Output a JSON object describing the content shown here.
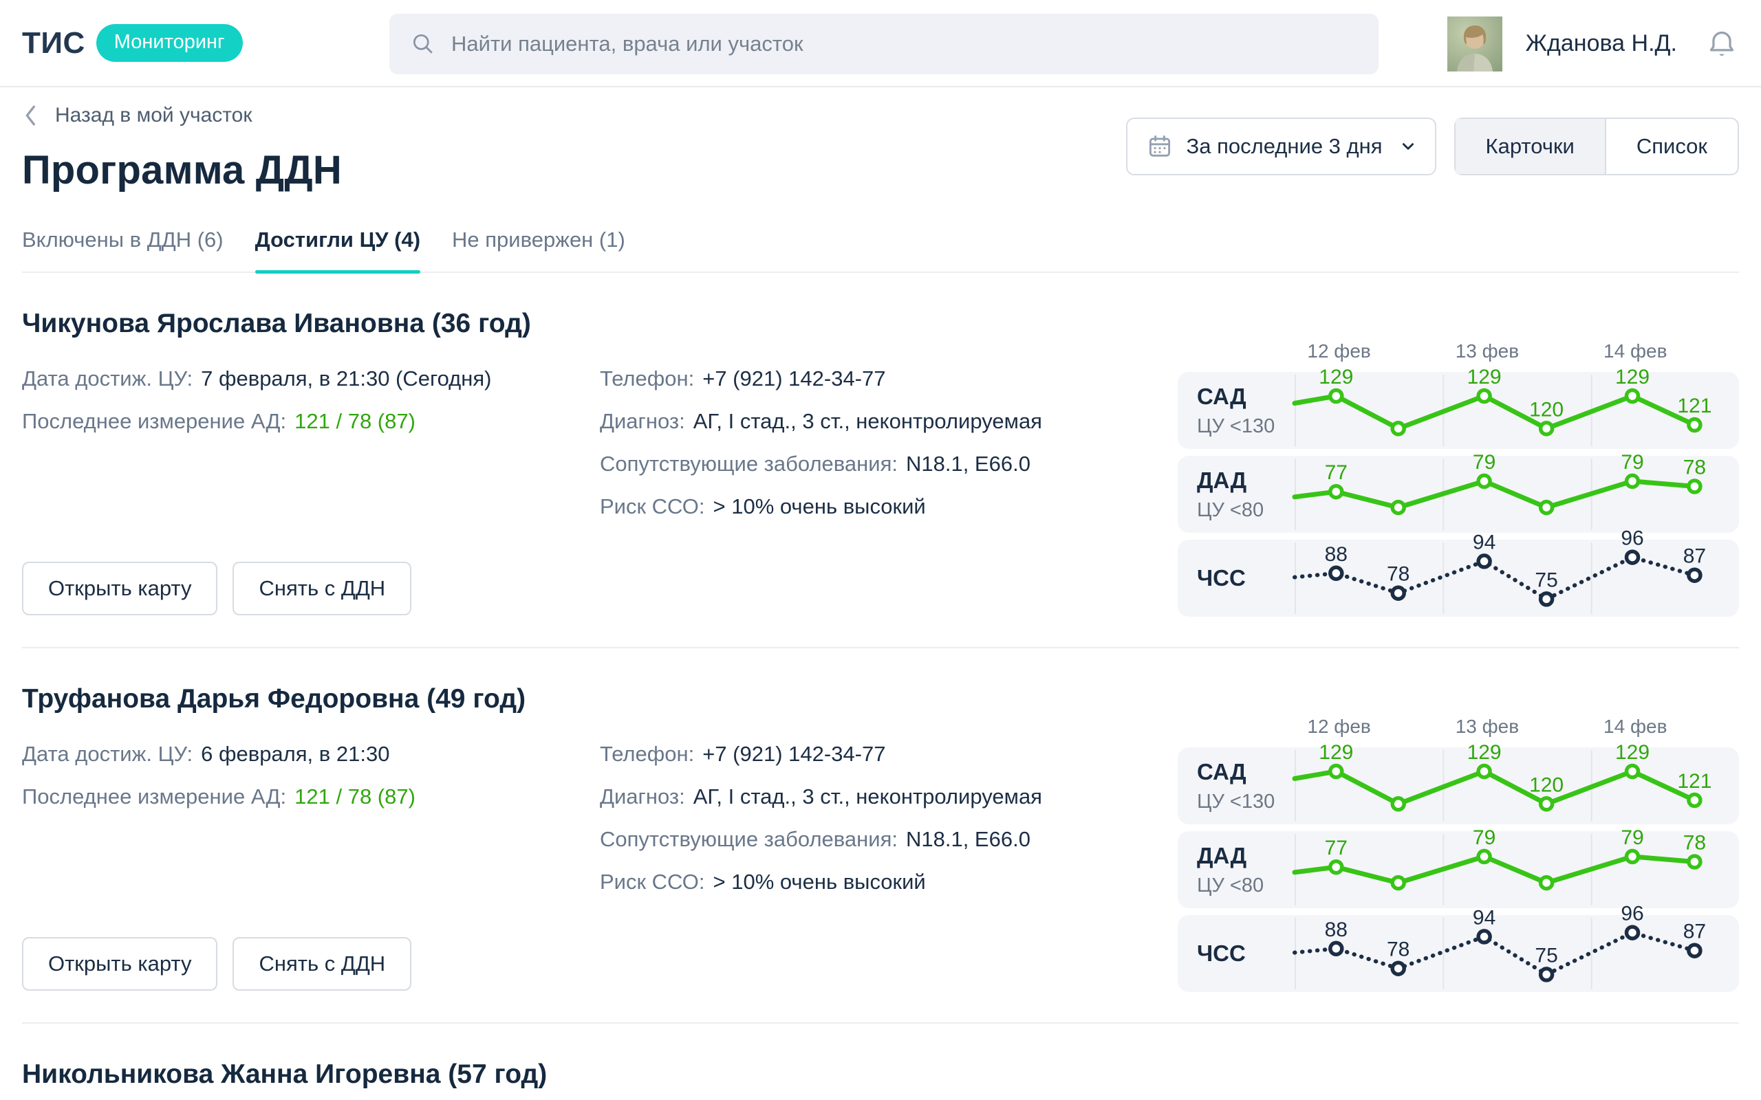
{
  "header": {
    "logo": "ТИС",
    "badge": "Мониторинг",
    "search_placeholder": "Найти пациента, врача или участок",
    "user_name": "Жданова Н.Д."
  },
  "toolbar": {
    "back_label": "Назад в мой участок",
    "title": "Программа ДДН",
    "date_filter_label": "За последние 3 дня",
    "view_cards_label": "Карточки",
    "view_list_label": "Список",
    "active_view": "Карточки"
  },
  "tabs": [
    {
      "label": "Включены в ДДН (6)",
      "active": false
    },
    {
      "label": "Достигли ЦУ (4)",
      "active": true
    },
    {
      "label": "Не привержен (1)",
      "active": false
    }
  ],
  "field_labels": {
    "date_cu": "Дата достиж. ЦУ:",
    "last_bp": "Последнее измерение АД:",
    "phone": "Телефон:",
    "diagnosis": "Диагноз:",
    "comorbid": "Сопутствующие заболевания:",
    "risk": "Риск ССО:",
    "open_card": "Открыть карту",
    "remove_ddn": "Снять с ДДН"
  },
  "colors": {
    "teal_accent": "#14D1C6",
    "green_text": "#2FA70C",
    "green_line": "#38C417",
    "navy": "#1C2E45",
    "row_bg": "#F4F5F8",
    "gridline": "#E3E5EB"
  },
  "chart_dates": [
    "12 фев",
    "13 фев",
    "14 фев"
  ],
  "patients": [
    {
      "name": "Чикунова Ярослава Ивановна (36 год)",
      "date_cu": "7 февраля, в 21:30 (Сегодня)",
      "last_bp": "121 / 78 (87)",
      "phone": "+7 (921) 142-34-77",
      "diagnosis": "АГ, I стад., 3 ст., неконтролируемая",
      "comorbid": "N18.1, E66.0",
      "risk": "> 10% очень высокий",
      "vitals": [
        {
          "name": "САД",
          "target": "ЦУ <130",
          "style": "green",
          "range": [
            117,
            133
          ],
          "lead_in": 127,
          "points": [
            {
              "v": 129,
              "label": "129"
            },
            {
              "v": 120
            },
            {
              "v": 129,
              "label": "129"
            },
            {
              "v": 120,
              "label": "120"
            },
            {
              "v": 129,
              "label": "129"
            },
            {
              "v": 121,
              "label": "121"
            }
          ]
        },
        {
          "name": "ДАД",
          "target": "ЦУ <80",
          "style": "green",
          "range": [
            71,
            82
          ],
          "lead_in": 76,
          "points": [
            {
              "v": 77,
              "label": "77"
            },
            {
              "v": 74
            },
            {
              "v": 79,
              "label": "79"
            },
            {
              "v": 74
            },
            {
              "v": 79,
              "label": "79"
            },
            {
              "v": 78,
              "label": "78"
            }
          ]
        },
        {
          "name": "ЧСС",
          "target": "",
          "style": "dotted",
          "range": [
            71,
            100
          ],
          "lead_in": 86,
          "points": [
            {
              "v": 88,
              "label": "88"
            },
            {
              "v": 78,
              "label": "78"
            },
            {
              "v": 94,
              "label": "94"
            },
            {
              "v": 75,
              "label": "75"
            },
            {
              "v": 96,
              "label": "96"
            },
            {
              "v": 87,
              "label": "87"
            }
          ]
        }
      ]
    },
    {
      "name": "Труфанова Дарья Федоровна (49 год)",
      "date_cu": "6 февраля, в 21:30",
      "last_bp": "121 / 78 (87)",
      "phone": "+7 (921) 142-34-77",
      "diagnosis": "АГ, I стад., 3 ст., неконтролируемая",
      "comorbid": "N18.1, E66.0",
      "risk": "> 10% очень высокий",
      "vitals": [
        {
          "name": "САД",
          "target": "ЦУ <130",
          "style": "green",
          "range": [
            117,
            133
          ],
          "lead_in": 127,
          "points": [
            {
              "v": 129,
              "label": "129"
            },
            {
              "v": 120
            },
            {
              "v": 129,
              "label": "129"
            },
            {
              "v": 120,
              "label": "120"
            },
            {
              "v": 129,
              "label": "129"
            },
            {
              "v": 121,
              "label": "121"
            }
          ]
        },
        {
          "name": "ДАД",
          "target": "ЦУ <80",
          "style": "green",
          "range": [
            71,
            82
          ],
          "lead_in": 76,
          "points": [
            {
              "v": 77,
              "label": "77"
            },
            {
              "v": 74
            },
            {
              "v": 79,
              "label": "79"
            },
            {
              "v": 74
            },
            {
              "v": 79,
              "label": "79"
            },
            {
              "v": 78,
              "label": "78"
            }
          ]
        },
        {
          "name": "ЧСС",
          "target": "",
          "style": "dotted",
          "range": [
            71,
            100
          ],
          "lead_in": 86,
          "points": [
            {
              "v": 88,
              "label": "88"
            },
            {
              "v": 78,
              "label": "78"
            },
            {
              "v": 94,
              "label": "94"
            },
            {
              "v": 75,
              "label": "75"
            },
            {
              "v": 96,
              "label": "96"
            },
            {
              "v": 87,
              "label": "87"
            }
          ]
        }
      ]
    },
    {
      "name": "Никольникова Жанна Игоревна (57 год)",
      "partial": true
    }
  ]
}
